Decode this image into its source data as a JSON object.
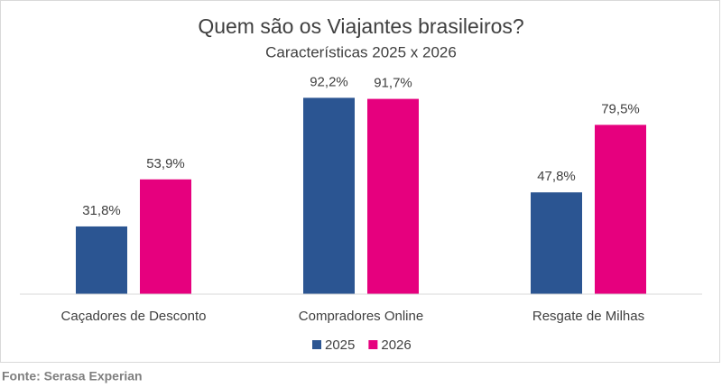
{
  "chart_data": {
    "type": "bar",
    "title": "Quem são os Viajantes brasileiros?",
    "subtitle": "Características 2025 x 2026",
    "categories": [
      "Caçadores de Desconto",
      "Compradores Online",
      "Resgate de Milhas"
    ],
    "series": [
      {
        "name": "2025",
        "color": "#2b5592",
        "values": [
          31.8,
          92.2,
          47.8
        ],
        "value_labels": [
          "31,8%",
          "92,2%",
          "47,8%"
        ]
      },
      {
        "name": "2026",
        "color": "#e6007e",
        "values": [
          53.9,
          91.7,
          79.5
        ],
        "value_labels": [
          "53,9%",
          "91,7%",
          "79,5%"
        ]
      }
    ],
    "ylim": [
      0,
      100
    ],
    "legend": "bottom",
    "source": "Fonte: Serasa Experian"
  }
}
